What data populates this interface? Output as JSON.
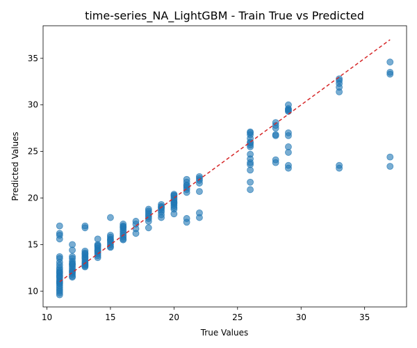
{
  "chart_data": {
    "type": "scatter",
    "title": "time-series_NA_LightGBM - Train True vs Predicted",
    "xlabel": "True Values",
    "ylabel": "Predicted Values",
    "xlim": [
      9.7,
      38.3
    ],
    "ylim": [
      8.3,
      38.5
    ],
    "x_ticks": [
      10,
      15,
      20,
      25,
      30,
      35
    ],
    "y_ticks": [
      10,
      15,
      20,
      25,
      30,
      35
    ],
    "grid": false,
    "legend": "none",
    "point_color": "#1f77b4",
    "reference_line": {
      "x": [
        11,
        37
      ],
      "y": [
        11,
        37
      ],
      "color": "#d62728",
      "style": "dashed"
    },
    "series": [
      {
        "x": [
          11,
          11,
          11,
          11,
          11,
          11,
          11,
          11,
          11,
          11,
          11,
          11,
          11,
          11,
          11,
          11,
          11,
          11,
          11,
          11,
          11,
          11,
          11,
          11,
          11,
          11,
          11,
          12,
          12,
          12,
          12,
          12,
          12,
          12,
          12,
          12,
          12,
          12,
          12,
          12,
          12,
          12,
          12,
          13,
          13,
          13,
          13,
          13,
          13,
          13,
          13,
          13,
          13,
          13,
          13,
          13,
          13,
          13,
          13,
          14,
          14,
          14,
          14,
          14,
          14,
          14,
          14,
          14,
          14,
          14,
          15,
          15,
          15,
          15,
          15,
          15,
          15,
          15,
          15,
          15,
          16,
          16,
          16,
          16,
          16,
          16,
          16,
          16,
          16,
          16,
          16,
          17,
          17,
          17,
          17,
          18,
          18,
          18,
          18,
          18,
          18,
          18,
          18,
          19,
          19,
          19,
          19,
          19,
          19,
          19,
          19,
          20,
          20,
          20,
          20,
          20,
          20,
          20,
          20,
          20,
          20,
          20,
          20,
          21,
          21,
          21,
          21,
          21,
          21,
          21,
          21,
          21,
          22,
          22,
          22,
          22,
          22,
          22,
          22,
          26,
          26,
          26,
          26,
          26,
          26,
          26,
          26,
          26,
          26,
          26,
          26,
          26,
          26,
          26,
          28,
          28,
          28,
          28,
          28,
          28,
          28,
          29,
          29,
          29,
          29,
          29,
          29,
          29,
          29,
          29,
          29,
          29,
          33,
          33,
          33,
          33,
          33,
          33,
          33,
          37,
          37,
          37,
          37,
          37
        ],
        "y": [
          17.0,
          16.2,
          16.0,
          15.6,
          13.7,
          13.5,
          13.1,
          12.8,
          12.5,
          12.3,
          12.1,
          11.9,
          11.7,
          11.5,
          11.3,
          11.1,
          11.0,
          10.8,
          10.6,
          10.4,
          10.2,
          10.0,
          9.8,
          9.6,
          11.6,
          12.0,
          10.9,
          15.0,
          14.4,
          13.7,
          13.5,
          13.2,
          13.0,
          12.8,
          12.6,
          12.4,
          12.2,
          12.0,
          11.8,
          11.6,
          11.5,
          12.9,
          12.1,
          17.0,
          16.8,
          14.3,
          14.1,
          13.9,
          13.7,
          13.5,
          13.3,
          13.1,
          12.9,
          12.7,
          12.6,
          13.6,
          13.0,
          12.8,
          14.0,
          15.6,
          15.0,
          14.8,
          14.6,
          14.4,
          14.2,
          14.0,
          13.8,
          13.6,
          14.3,
          14.9,
          17.9,
          16.0,
          15.8,
          15.6,
          15.4,
          15.2,
          15.0,
          14.8,
          14.7,
          15.5,
          17.2,
          17.0,
          16.8,
          16.6,
          16.4,
          16.2,
          16.0,
          15.8,
          15.6,
          15.5,
          16.9,
          17.5,
          17.2,
          16.7,
          16.2,
          18.8,
          18.6,
          18.4,
          18.2,
          18.0,
          17.8,
          17.5,
          16.8,
          19.3,
          19.1,
          18.9,
          18.7,
          18.5,
          18.2,
          17.9,
          19.0,
          20.4,
          20.2,
          20.0,
          19.8,
          19.6,
          19.4,
          19.2,
          19.0,
          18.8,
          18.3,
          20.3,
          19.5,
          22.0,
          21.7,
          21.4,
          21.1,
          20.9,
          20.6,
          17.8,
          17.4,
          21.3,
          22.3,
          22.1,
          21.9,
          21.6,
          20.7,
          18.4,
          17.9,
          27.1,
          26.8,
          26.4,
          26.0,
          25.7,
          25.5,
          24.7,
          24.2,
          23.8,
          23.6,
          23.0,
          21.7,
          20.9,
          27.0,
          25.9,
          28.1,
          27.8,
          27.5,
          26.8,
          26.7,
          24.1,
          23.8,
          30.0,
          29.6,
          29.3,
          29.5,
          27.0,
          26.7,
          25.5,
          24.9,
          23.5,
          23.2,
          29.4,
          32.8,
          32.6,
          32.3,
          31.9,
          31.4,
          23.5,
          23.2,
          34.6,
          33.5,
          33.3,
          24.4,
          23.4
        ]
      }
    ]
  }
}
